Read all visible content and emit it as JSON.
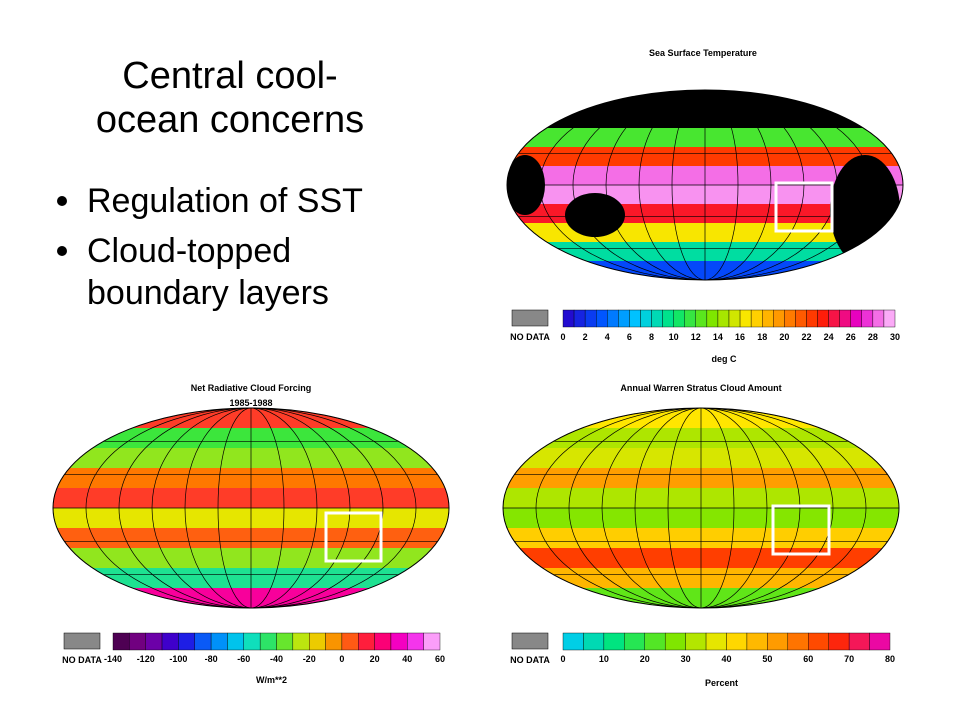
{
  "slide": {
    "title_lines": [
      "Central cool-",
      "ocean concerns"
    ],
    "bullets": [
      {
        "lines": [
          "Regulation of SST"
        ]
      },
      {
        "lines": [
          "Cloud-topped",
          "boundary layers"
        ]
      }
    ]
  },
  "panels": [
    {
      "title_lines": [
        "Sea Surface Temperature"
      ],
      "no_data": "NO DATA",
      "ticks": [
        "0",
        "2",
        "4",
        "6",
        "8",
        "10",
        "12",
        "14",
        "16",
        "18",
        "20",
        "22",
        "24",
        "26",
        "28",
        "30"
      ],
      "unit": "deg C"
    },
    {
      "title_lines": [
        "Net Radiative Cloud Forcing",
        "1985-1988"
      ],
      "no_data": "NO DATA",
      "ticks": [
        "-140",
        "-120",
        "-100",
        "-80",
        "-60",
        "-40",
        "-20",
        "0",
        "20",
        "40",
        "60"
      ],
      "unit": "W/m**2"
    },
    {
      "title_lines": [
        "Annual Warren Stratus Cloud Amount"
      ],
      "no_data": "NO DATA",
      "ticks": [
        "0",
        "10",
        "20",
        "30",
        "40",
        "50",
        "60",
        "70",
        "80"
      ],
      "unit": "Percent"
    }
  ]
}
